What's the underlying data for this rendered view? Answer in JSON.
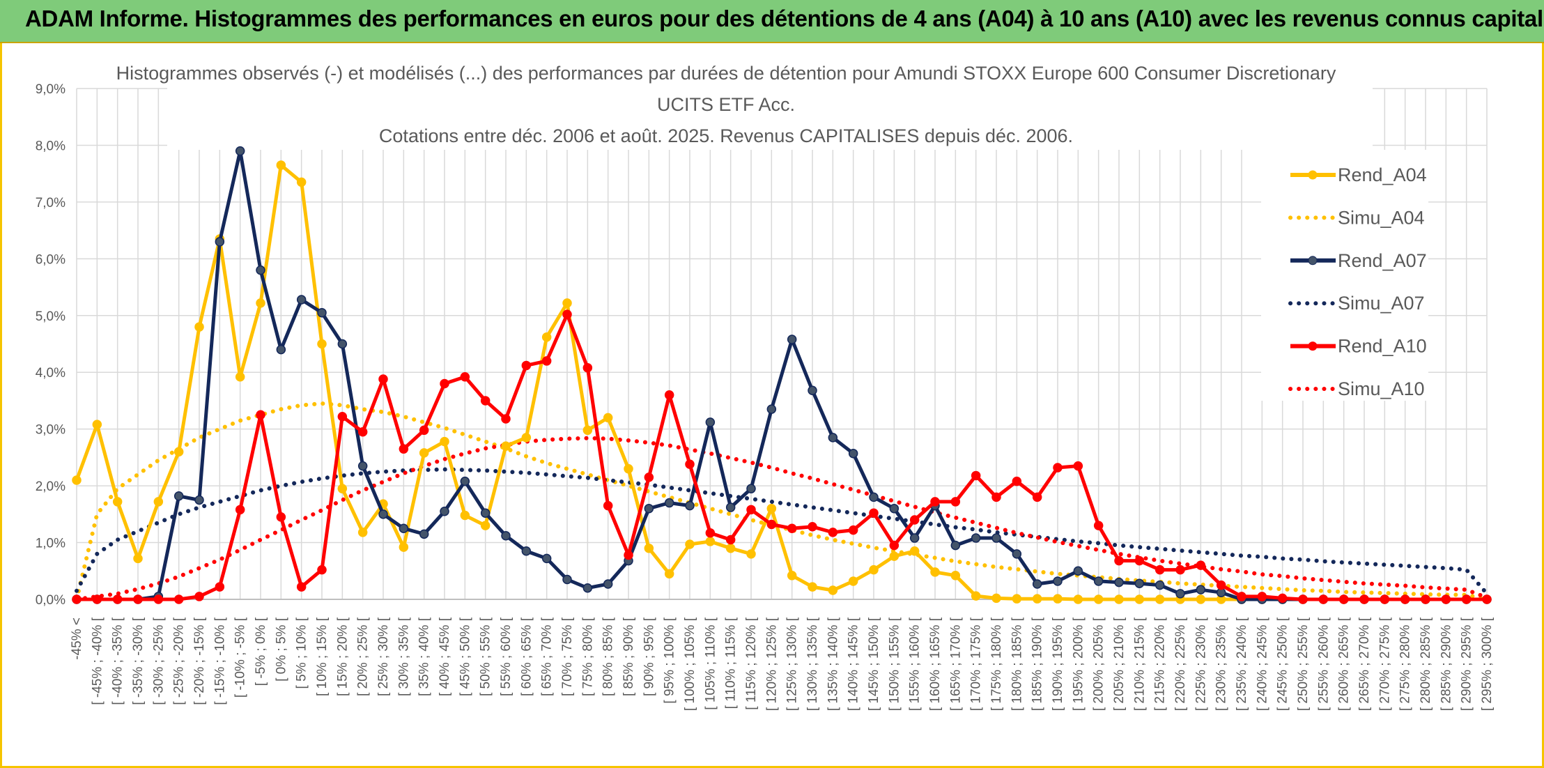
{
  "banner": {
    "title": "ADAM Informe. Histogrammes des performances en euros pour des détentions de 4 ans (A04) à 10 ans (A10) avec les revenus connus capitalisés"
  },
  "chart_data": {
    "type": "line",
    "title_lines": [
      "Histogrammes observés (-) et modélisés (...) des performances par durées de détention pour Amundi STOXX Europe 600 Consumer Discretionary",
      "UCITS ETF Acc.",
      "Cotations entre déc. 2006 et août. 2025. Revenus CAPITALISES depuis déc. 2006."
    ],
    "ylim": [
      0,
      9
    ],
    "y_ticks": [
      "0,0%",
      "1,0%",
      "2,0%",
      "3,0%",
      "4,0%",
      "5,0%",
      "6,0%",
      "7,0%",
      "8,0%",
      "9,0%"
    ],
    "grid": true,
    "legend_position": "right",
    "categories": [
      "-45% <",
      "[ -45% ; -40% [",
      "[ -40% ; -35% [",
      "[ -35% ; -30% [",
      "[ -30% ; -25% [",
      "[ -25% ; -20% [",
      "[ -20% ; -15% [",
      "[ -15% ; -10% [",
      "[ -10% ; -5% [",
      "[ -5% ; 0% [",
      "[ 0% ; 5% [",
      "[ 5% ; 10% [",
      "[ 10% ; 15% [",
      "[ 15% ; 20% [",
      "[ 20% ; 25% [",
      "[ 25% ; 30% [",
      "[ 30% ; 35% [",
      "[ 35% ; 40% [",
      "[ 40% ; 45% [",
      "[ 45% ; 50% [",
      "[ 50% ; 55% [",
      "[ 55% ; 60% [",
      "[ 60% ; 65% [",
      "[ 65% ; 70% [",
      "[ 70% ; 75% [",
      "[ 75% ; 80% [",
      "[ 80% ; 85% [",
      "[ 85% ; 90% [",
      "[ 90% ; 95% [",
      "[ 95% ; 100% [",
      "[ 100% ; 105% [",
      "[ 105% ; 110% [",
      "[ 110% ; 115% [",
      "[ 115% ; 120% [",
      "[ 120% ; 125% [",
      "[ 125% ; 130% [",
      "[ 130% ; 135% [",
      "[ 135% ; 140% [",
      "[ 140% ; 145% [",
      "[ 145% ; 150% [",
      "[ 150% ; 155% [",
      "[ 155% ; 160% [",
      "[ 160% ; 165% [",
      "[ 165% ; 170% [",
      "[ 170% ; 175% [",
      "[ 175% ; 180% [",
      "[ 180% ; 185% [",
      "[ 185% ; 190% [",
      "[ 190% ; 195% [",
      "[ 195% ; 200% [",
      "[ 200% ; 205% [",
      "[ 205% ; 210% [",
      "[ 210% ; 215% [",
      "[ 215% ; 220% [",
      "[ 220% ; 225% [",
      "[ 225% ; 230% [",
      "[ 230% ; 235% [",
      "[ 235% ; 240% [",
      "[ 240% ; 245% [",
      "[ 245% ; 250% [",
      "[ 250% ; 255% [",
      "[ 255% ; 260% [",
      "[ 260% ; 265% [",
      "[ 265% ; 270% [",
      "[ 270% ; 275% [",
      "[ 275% ; 280% [",
      "[ 280% ; 285% [",
      "[ 285% ; 290% [",
      "[ 290% ; 295% [",
      "[ 295% ; 300% ["
    ],
    "series": [
      {
        "name": "Rend_A04",
        "color": "#ffc000",
        "style": "solid",
        "markers": true,
        "values": [
          2.1,
          3.08,
          1.72,
          0.72,
          1.72,
          2.6,
          4.8,
          6.35,
          3.92,
          5.22,
          7.65,
          7.35,
          4.5,
          1.95,
          1.18,
          1.68,
          0.92,
          2.58,
          2.78,
          1.48,
          1.3,
          2.7,
          2.85,
          4.62,
          5.22,
          2.98,
          3.2,
          2.3,
          0.9,
          0.45,
          0.97,
          1.02,
          0.9,
          0.8,
          1.6,
          0.42,
          0.22,
          0.16,
          0.32,
          0.52,
          0.76,
          0.85,
          0.48,
          0.42,
          0.06,
          0.02,
          0.01,
          0.01,
          0.01,
          0.0,
          0.0,
          0.0,
          0.0,
          0.0,
          0.0,
          0.0,
          0.0,
          0.0,
          0.0,
          0.0,
          0.0,
          0.0,
          0.0,
          0.0,
          0.0,
          0.0,
          0.0,
          0.0,
          0.0,
          0.0
        ]
      },
      {
        "name": "Simu_A04",
        "color": "#ffc000",
        "style": "dotted",
        "markers": false,
        "values": [
          0.0,
          1.5,
          1.95,
          2.2,
          2.45,
          2.65,
          2.85,
          3.0,
          3.15,
          3.25,
          3.35,
          3.42,
          3.45,
          3.42,
          3.35,
          3.3,
          3.22,
          3.12,
          3.02,
          2.9,
          2.78,
          2.66,
          2.52,
          2.4,
          2.3,
          2.2,
          2.1,
          2.0,
          1.9,
          1.8,
          1.7,
          1.6,
          1.5,
          1.4,
          1.31,
          1.22,
          1.13,
          1.05,
          0.98,
          0.91,
          0.85,
          0.79,
          0.73,
          0.67,
          0.62,
          0.57,
          0.53,
          0.49,
          0.45,
          0.42,
          0.39,
          0.36,
          0.33,
          0.31,
          0.28,
          0.26,
          0.24,
          0.22,
          0.2,
          0.18,
          0.16,
          0.15,
          0.13,
          0.12,
          0.11,
          0.1,
          0.09,
          0.08,
          0.08,
          0.0
        ]
      },
      {
        "name": "Rend_A07",
        "color": "#14285a",
        "style": "solid",
        "markers": true,
        "values": [
          0.0,
          0.0,
          0.0,
          0.0,
          0.05,
          1.82,
          1.75,
          6.3,
          7.9,
          5.8,
          4.4,
          5.28,
          5.05,
          4.5,
          2.35,
          1.5,
          1.25,
          1.15,
          1.55,
          2.08,
          1.52,
          1.12,
          0.85,
          0.72,
          0.35,
          0.2,
          0.27,
          0.68,
          1.6,
          1.7,
          1.65,
          3.12,
          1.62,
          1.95,
          3.35,
          4.58,
          3.68,
          2.85,
          2.57,
          1.8,
          1.6,
          1.08,
          1.65,
          0.95,
          1.08,
          1.08,
          0.8,
          0.27,
          0.32,
          0.5,
          0.32,
          0.3,
          0.28,
          0.25,
          0.1,
          0.17,
          0.12,
          0.0,
          0.0,
          0.0,
          0.0,
          0.0,
          0.0,
          0.0,
          0.0,
          0.0,
          0.0,
          0.0,
          0.0,
          0.0
        ]
      },
      {
        "name": "Simu_A07",
        "color": "#14285a",
        "style": "dotted",
        "markers": false,
        "values": [
          0.15,
          0.8,
          1.05,
          1.2,
          1.35,
          1.5,
          1.62,
          1.72,
          1.82,
          1.92,
          2.0,
          2.07,
          2.13,
          2.18,
          2.22,
          2.25,
          2.27,
          2.28,
          2.29,
          2.28,
          2.27,
          2.25,
          2.23,
          2.2,
          2.17,
          2.14,
          2.1,
          2.06,
          2.02,
          1.97,
          1.92,
          1.87,
          1.82,
          1.77,
          1.72,
          1.67,
          1.62,
          1.57,
          1.52,
          1.47,
          1.42,
          1.37,
          1.32,
          1.27,
          1.23,
          1.18,
          1.14,
          1.1,
          1.06,
          1.02,
          0.99,
          0.95,
          0.92,
          0.89,
          0.86,
          0.83,
          0.8,
          0.77,
          0.75,
          0.72,
          0.7,
          0.67,
          0.65,
          0.63,
          0.61,
          0.59,
          0.57,
          0.55,
          0.52,
          0.1
        ]
      },
      {
        "name": "Rend_A10",
        "color": "#ff0000",
        "style": "solid",
        "markers": true,
        "values": [
          0.0,
          0.0,
          0.0,
          0.0,
          0.0,
          0.0,
          0.05,
          0.22,
          1.58,
          3.25,
          1.45,
          0.22,
          0.52,
          3.22,
          2.95,
          3.88,
          2.65,
          2.98,
          3.8,
          3.92,
          3.5,
          3.18,
          4.12,
          4.2,
          5.02,
          4.08,
          1.65,
          0.78,
          2.15,
          3.6,
          2.38,
          1.17,
          1.05,
          1.58,
          1.32,
          1.25,
          1.28,
          1.18,
          1.22,
          1.52,
          0.95,
          1.4,
          1.72,
          1.72,
          2.18,
          1.8,
          2.08,
          1.8,
          2.32,
          2.35,
          1.3,
          0.68,
          0.68,
          0.52,
          0.52,
          0.6,
          0.25,
          0.05,
          0.05,
          0.02,
          0.0,
          0.0,
          0.0,
          0.0,
          0.0,
          0.0,
          0.0,
          0.0,
          0.0,
          0.0
        ]
      },
      {
        "name": "Simu_A10",
        "color": "#ff0000",
        "style": "dotted",
        "markers": false,
        "values": [
          0.0,
          0.05,
          0.1,
          0.18,
          0.28,
          0.4,
          0.55,
          0.7,
          0.87,
          1.05,
          1.22,
          1.4,
          1.57,
          1.75,
          1.92,
          2.07,
          2.22,
          2.35,
          2.47,
          2.57,
          2.66,
          2.72,
          2.78,
          2.81,
          2.83,
          2.84,
          2.83,
          2.8,
          2.76,
          2.71,
          2.64,
          2.57,
          2.49,
          2.41,
          2.32,
          2.22,
          2.13,
          2.03,
          1.93,
          1.83,
          1.73,
          1.63,
          1.53,
          1.44,
          1.35,
          1.26,
          1.17,
          1.09,
          1.01,
          0.94,
          0.87,
          0.8,
          0.74,
          0.68,
          0.63,
          0.58,
          0.53,
          0.49,
          0.44,
          0.41,
          0.37,
          0.34,
          0.31,
          0.28,
          0.26,
          0.24,
          0.21,
          0.19,
          0.17,
          0.03
        ]
      }
    ]
  }
}
